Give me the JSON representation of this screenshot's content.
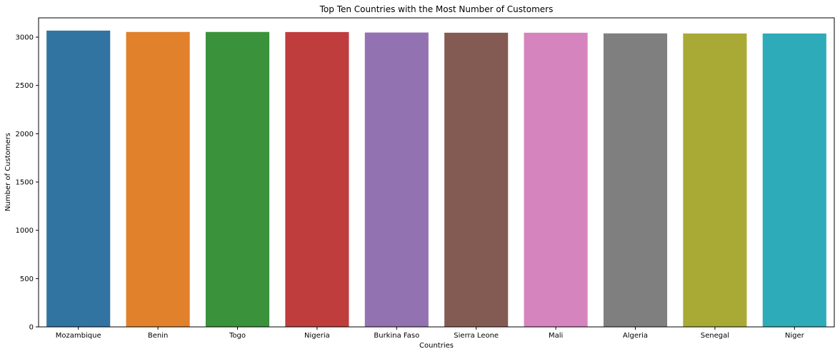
{
  "chart_data": {
    "type": "bar",
    "title": "Top Ten Countries with the Most Number of Customers",
    "xlabel": "Countries",
    "ylabel": "Number of Customers",
    "categories": [
      "Mozambique",
      "Benin",
      "Togo",
      "Nigeria",
      "Burkina Faso",
      "Sierra Leone",
      "Mali",
      "Algeria",
      "Senegal",
      "Niger"
    ],
    "values": [
      3068,
      3054,
      3054,
      3053,
      3048,
      3046,
      3046,
      3039,
      3038,
      3038
    ],
    "colors": [
      "#3274a1",
      "#e1812c",
      "#3a923a",
      "#c03d3e",
      "#9372b2",
      "#845b53",
      "#d684bd",
      "#7f7f7f",
      "#a9aa35",
      "#2eabb8"
    ],
    "ylim": [
      0,
      3200
    ],
    "yticks": [
      0,
      500,
      1000,
      1500,
      2000,
      2500,
      3000
    ],
    "grid": false,
    "legend": "none"
  }
}
